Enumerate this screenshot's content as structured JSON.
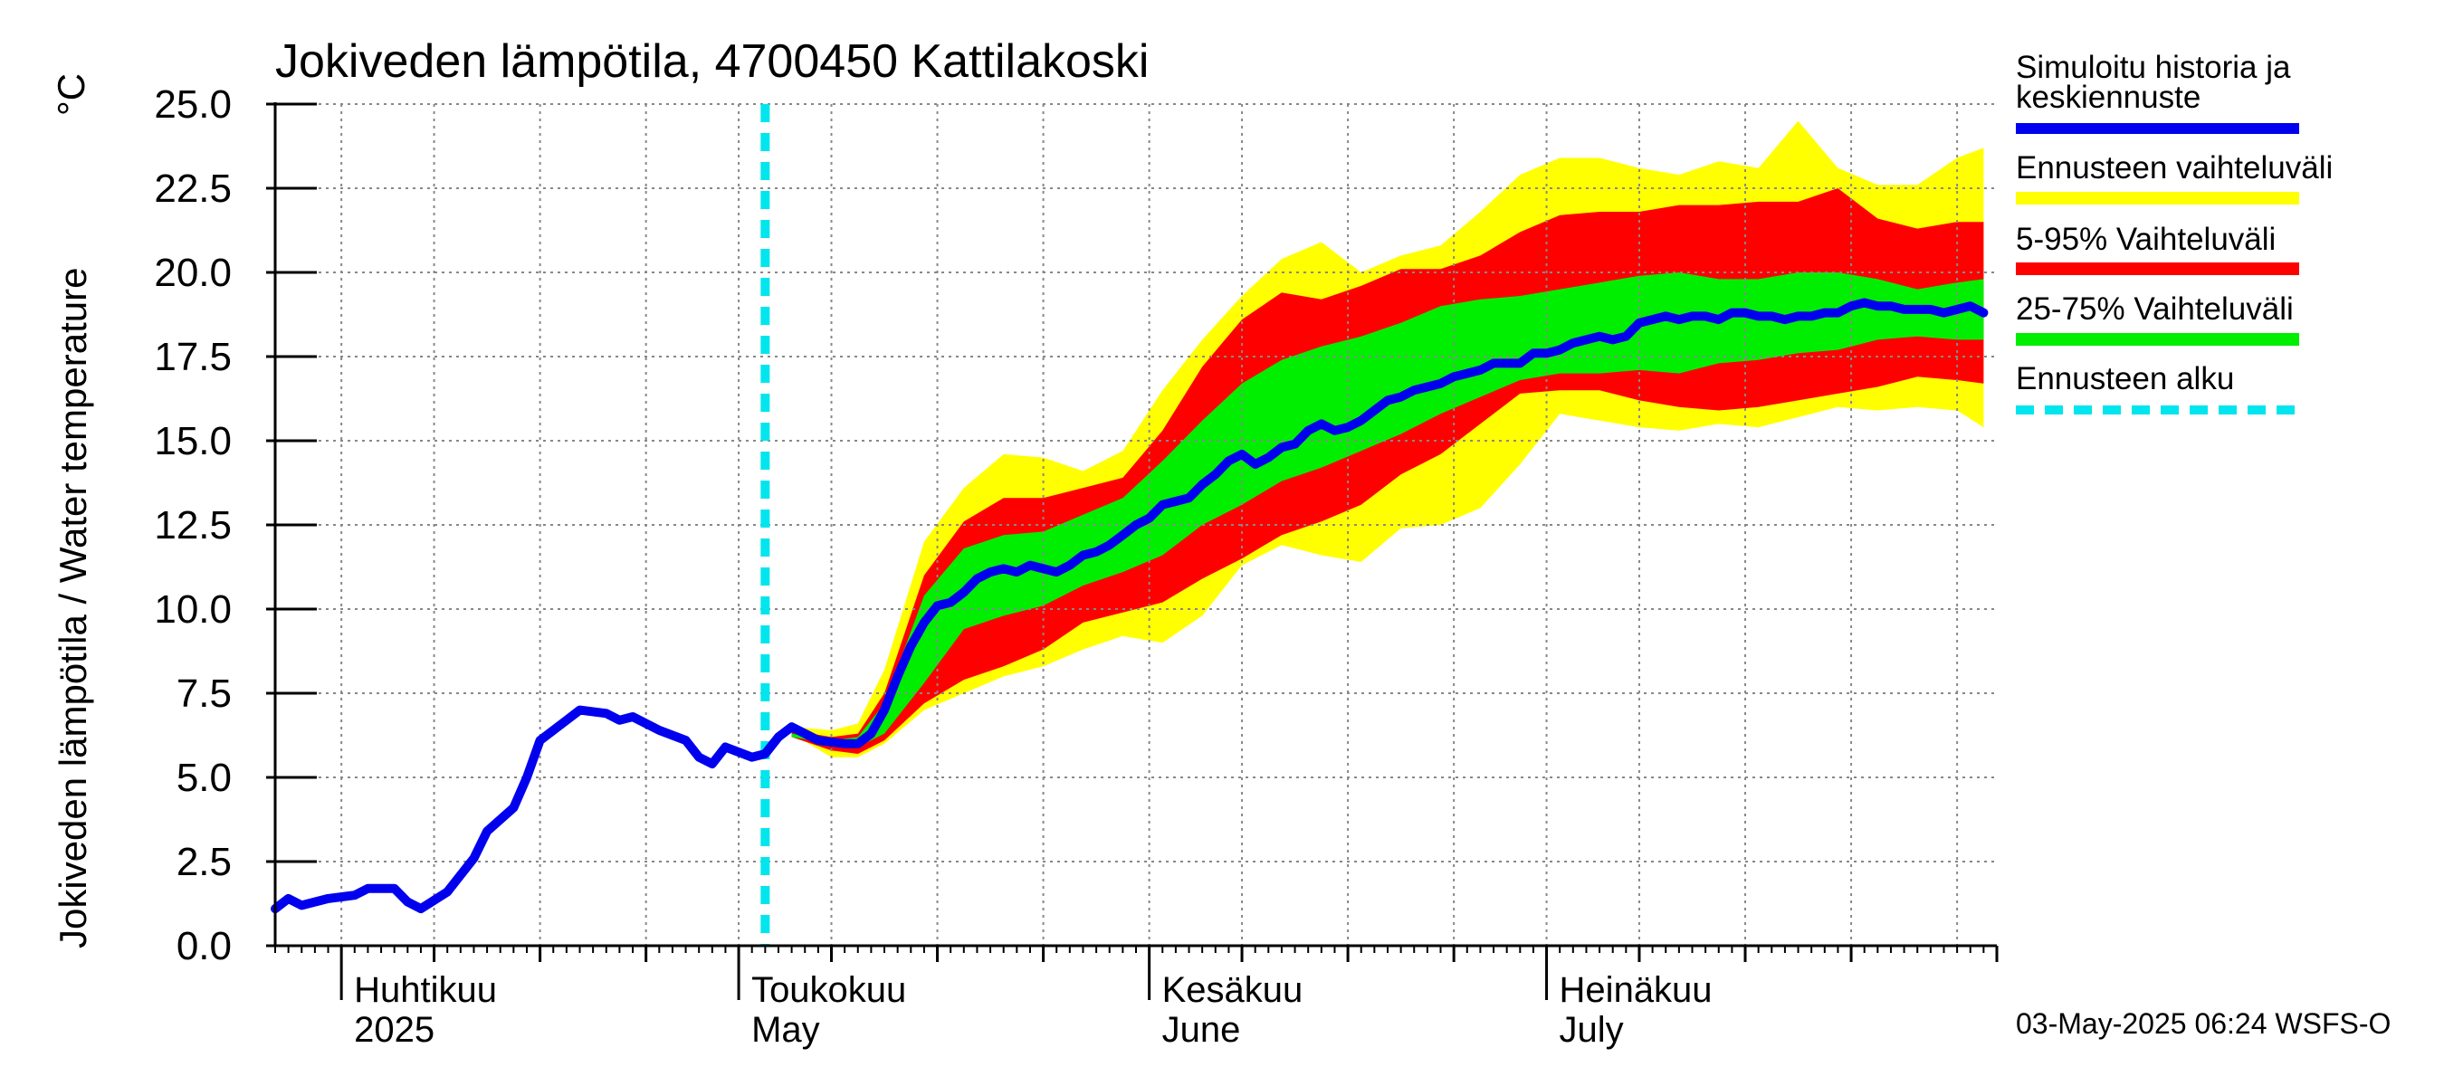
{
  "chart_data": {
    "type": "area",
    "title": "Jokiveden lämpötila, 4700450 Kattilakoski",
    "ylabel": "Jokiveden lämpötila / Water temperature",
    "yunit": "°C",
    "ylim": [
      0,
      25
    ],
    "yticks": [
      "0.0",
      "2.5",
      "5.0",
      "7.5",
      "10.0",
      "12.5",
      "15.0",
      "17.5",
      "20.0",
      "22.5",
      "25.0"
    ],
    "x_range": [
      "2025-03-27",
      "2025-08-04"
    ],
    "x_major": [
      {
        "date": "2025-04-01",
        "fi": "Huhtikuu",
        "en": "2025"
      },
      {
        "date": "2025-05-01",
        "fi": "Toukokuu",
        "en": "May"
      },
      {
        "date": "2025-06-01",
        "fi": "Kesäkuu",
        "en": "June"
      },
      {
        "date": "2025-07-01",
        "fi": "Heinäkuu",
        "en": "July"
      }
    ],
    "forecast_start": "2025-05-03",
    "grid": true,
    "legend_position": "right",
    "legend": [
      {
        "label": "Simuloitu historia ja keskiennuste",
        "line1": "Simuloitu historia ja",
        "line2": "keskiennuste",
        "color": "#0000ee",
        "style": "solid"
      },
      {
        "label": "Ennusteen vaihteluväli",
        "color": "#ffff00",
        "style": "solid"
      },
      {
        "label": "5-95% Vaihteluväli",
        "color": "#ff0000",
        "style": "solid"
      },
      {
        "label": "25-75% Vaihteluväli",
        "color": "#00ee00",
        "style": "solid"
      },
      {
        "label": "Ennusteen alku",
        "color": "#00e5ee",
        "style": "dashed"
      }
    ],
    "series": [
      {
        "name": "Simuloitu historia ja keskiennuste",
        "points": [
          [
            "2025-03-27",
            1.1
          ],
          [
            "2025-03-28",
            1.4
          ],
          [
            "2025-03-29",
            1.2
          ],
          [
            "2025-03-31",
            1.4
          ],
          [
            "2025-04-02",
            1.5
          ],
          [
            "2025-04-03",
            1.7
          ],
          [
            "2025-04-05",
            1.7
          ],
          [
            "2025-04-06",
            1.3
          ],
          [
            "2025-04-07",
            1.1
          ],
          [
            "2025-04-09",
            1.6
          ],
          [
            "2025-04-11",
            2.6
          ],
          [
            "2025-04-12",
            3.4
          ],
          [
            "2025-04-14",
            4.1
          ],
          [
            "2025-04-15",
            5.0
          ],
          [
            "2025-04-16",
            6.1
          ],
          [
            "2025-04-18",
            6.7
          ],
          [
            "2025-04-19",
            7.0
          ],
          [
            "2025-04-21",
            6.9
          ],
          [
            "2025-04-22",
            6.7
          ],
          [
            "2025-04-23",
            6.8
          ],
          [
            "2025-04-24",
            6.6
          ],
          [
            "2025-04-25",
            6.4
          ],
          [
            "2025-04-27",
            6.1
          ],
          [
            "2025-04-28",
            5.6
          ],
          [
            "2025-04-29",
            5.4
          ],
          [
            "2025-04-30",
            5.9
          ],
          [
            "2025-05-02",
            5.6
          ],
          [
            "2025-05-03",
            5.7
          ],
          [
            "2025-05-04",
            6.2
          ],
          [
            "2025-05-05",
            6.5
          ],
          [
            "2025-05-06",
            6.3
          ],
          [
            "2025-05-07",
            6.1
          ],
          [
            "2025-05-09",
            6.0
          ],
          [
            "2025-05-10",
            6.0
          ],
          [
            "2025-05-11",
            6.3
          ],
          [
            "2025-05-12",
            7.0
          ],
          [
            "2025-05-13",
            8.0
          ],
          [
            "2025-05-14",
            8.9
          ],
          [
            "2025-05-15",
            9.6
          ],
          [
            "2025-05-16",
            10.1
          ],
          [
            "2025-05-17",
            10.2
          ],
          [
            "2025-05-18",
            10.5
          ],
          [
            "2025-05-19",
            10.9
          ],
          [
            "2025-05-20",
            11.1
          ],
          [
            "2025-05-21",
            11.2
          ],
          [
            "2025-05-22",
            11.1
          ],
          [
            "2025-05-23",
            11.3
          ],
          [
            "2025-05-24",
            11.2
          ],
          [
            "2025-05-25",
            11.1
          ],
          [
            "2025-05-26",
            11.3
          ],
          [
            "2025-05-27",
            11.6
          ],
          [
            "2025-05-28",
            11.7
          ],
          [
            "2025-05-29",
            11.9
          ],
          [
            "2025-05-30",
            12.2
          ],
          [
            "2025-05-31",
            12.5
          ],
          [
            "2025-06-01",
            12.7
          ],
          [
            "2025-06-02",
            13.1
          ],
          [
            "2025-06-03",
            13.2
          ],
          [
            "2025-06-04",
            13.3
          ],
          [
            "2025-06-05",
            13.7
          ],
          [
            "2025-06-06",
            14.0
          ],
          [
            "2025-06-07",
            14.4
          ],
          [
            "2025-06-08",
            14.6
          ],
          [
            "2025-06-09",
            14.3
          ],
          [
            "2025-06-10",
            14.5
          ],
          [
            "2025-06-11",
            14.8
          ],
          [
            "2025-06-12",
            14.9
          ],
          [
            "2025-06-13",
            15.3
          ],
          [
            "2025-06-14",
            15.5
          ],
          [
            "2025-06-15",
            15.3
          ],
          [
            "2025-06-16",
            15.4
          ],
          [
            "2025-06-17",
            15.6
          ],
          [
            "2025-06-18",
            15.9
          ],
          [
            "2025-06-19",
            16.2
          ],
          [
            "2025-06-20",
            16.3
          ],
          [
            "2025-06-21",
            16.5
          ],
          [
            "2025-06-22",
            16.6
          ],
          [
            "2025-06-23",
            16.7
          ],
          [
            "2025-06-24",
            16.9
          ],
          [
            "2025-06-25",
            17.0
          ],
          [
            "2025-06-26",
            17.1
          ],
          [
            "2025-06-27",
            17.3
          ],
          [
            "2025-06-28",
            17.3
          ],
          [
            "2025-06-29",
            17.3
          ],
          [
            "2025-06-30",
            17.6
          ],
          [
            "2025-07-01",
            17.6
          ],
          [
            "2025-07-02",
            17.7
          ],
          [
            "2025-07-03",
            17.9
          ],
          [
            "2025-07-04",
            18.0
          ],
          [
            "2025-07-05",
            18.1
          ],
          [
            "2025-07-06",
            18.0
          ],
          [
            "2025-07-07",
            18.1
          ],
          [
            "2025-07-08",
            18.5
          ],
          [
            "2025-07-09",
            18.6
          ],
          [
            "2025-07-10",
            18.7
          ],
          [
            "2025-07-11",
            18.6
          ],
          [
            "2025-07-12",
            18.7
          ],
          [
            "2025-07-13",
            18.7
          ],
          [
            "2025-07-14",
            18.6
          ],
          [
            "2025-07-15",
            18.8
          ],
          [
            "2025-07-16",
            18.8
          ],
          [
            "2025-07-17",
            18.7
          ],
          [
            "2025-07-18",
            18.7
          ],
          [
            "2025-07-19",
            18.6
          ],
          [
            "2025-07-20",
            18.7
          ],
          [
            "2025-07-21",
            18.7
          ],
          [
            "2025-07-22",
            18.8
          ],
          [
            "2025-07-23",
            18.8
          ],
          [
            "2025-07-24",
            19.0
          ],
          [
            "2025-07-25",
            19.1
          ],
          [
            "2025-07-26",
            19.0
          ],
          [
            "2025-07-27",
            19.0
          ],
          [
            "2025-07-28",
            18.9
          ],
          [
            "2025-07-29",
            18.9
          ],
          [
            "2025-07-30",
            18.9
          ],
          [
            "2025-07-31",
            18.8
          ],
          [
            "2025-08-01",
            18.9
          ],
          [
            "2025-08-02",
            19.0
          ],
          [
            "2025-08-03",
            18.8
          ]
        ]
      }
    ],
    "bands": [
      {
        "name": "Ennusteen vaihteluväli",
        "color": "#ffff00",
        "dates": [
          "2025-05-05",
          "2025-05-08",
          "2025-05-10",
          "2025-05-12",
          "2025-05-15",
          "2025-05-18",
          "2025-05-21",
          "2025-05-24",
          "2025-05-27",
          "2025-05-30",
          "2025-06-02",
          "2025-06-05",
          "2025-06-08",
          "2025-06-11",
          "2025-06-14",
          "2025-06-17",
          "2025-06-20",
          "2025-06-23",
          "2025-06-26",
          "2025-06-29",
          "2025-07-02",
          "2025-07-05",
          "2025-07-08",
          "2025-07-11",
          "2025-07-14",
          "2025-07-17",
          "2025-07-20",
          "2025-07-23",
          "2025-07-26",
          "2025-07-29",
          "2025-08-01",
          "2025-08-03"
        ],
        "upper": [
          6.5,
          6.4,
          6.6,
          8.2,
          12.0,
          13.6,
          14.6,
          14.5,
          14.1,
          14.7,
          16.5,
          18.0,
          19.3,
          20.4,
          20.9,
          20.0,
          20.5,
          20.8,
          21.8,
          22.9,
          23.4,
          23.4,
          23.1,
          22.9,
          23.3,
          23.1,
          24.5,
          23.1,
          22.6,
          22.6,
          23.4,
          23.7
        ],
        "lower": [
          6.3,
          5.6,
          5.6,
          6.0,
          7.0,
          7.5,
          8.0,
          8.3,
          8.8,
          9.2,
          9.0,
          9.8,
          11.3,
          11.9,
          11.6,
          11.4,
          12.4,
          12.5,
          13.0,
          14.3,
          15.8,
          15.6,
          15.4,
          15.3,
          15.5,
          15.4,
          15.7,
          16.0,
          15.9,
          16.0,
          15.9,
          15.4
        ]
      },
      {
        "name": "5-95% Vaihteluväli",
        "color": "#ff0000",
        "dates": [
          "2025-05-05",
          "2025-05-08",
          "2025-05-10",
          "2025-05-12",
          "2025-05-15",
          "2025-05-18",
          "2025-05-21",
          "2025-05-24",
          "2025-05-27",
          "2025-05-30",
          "2025-06-02",
          "2025-06-05",
          "2025-06-08",
          "2025-06-11",
          "2025-06-14",
          "2025-06-17",
          "2025-06-20",
          "2025-06-23",
          "2025-06-26",
          "2025-06-29",
          "2025-07-02",
          "2025-07-05",
          "2025-07-08",
          "2025-07-11",
          "2025-07-14",
          "2025-07-17",
          "2025-07-20",
          "2025-07-23",
          "2025-07-26",
          "2025-07-29",
          "2025-08-01",
          "2025-08-03"
        ],
        "upper": [
          6.4,
          6.2,
          6.3,
          7.5,
          11.0,
          12.6,
          13.3,
          13.3,
          13.6,
          13.9,
          15.3,
          17.2,
          18.6,
          19.4,
          19.2,
          19.6,
          20.1,
          20.1,
          20.5,
          21.2,
          21.7,
          21.8,
          21.8,
          22.0,
          22.0,
          22.1,
          22.1,
          22.5,
          21.6,
          21.3,
          21.5,
          21.5
        ],
        "lower": [
          6.2,
          5.8,
          5.7,
          6.1,
          7.2,
          7.9,
          8.3,
          8.8,
          9.6,
          9.9,
          10.2,
          10.9,
          11.5,
          12.2,
          12.6,
          13.1,
          14.0,
          14.6,
          15.5,
          16.4,
          16.5,
          16.5,
          16.2,
          16.0,
          15.9,
          16.0,
          16.2,
          16.4,
          16.6,
          16.9,
          16.8,
          16.7
        ]
      },
      {
        "name": "25-75% Vaihteluväli",
        "color": "#00ee00",
        "dates": [
          "2025-05-05",
          "2025-05-08",
          "2025-05-10",
          "2025-05-12",
          "2025-05-15",
          "2025-05-18",
          "2025-05-21",
          "2025-05-24",
          "2025-05-27",
          "2025-05-30",
          "2025-06-02",
          "2025-06-05",
          "2025-06-08",
          "2025-06-11",
          "2025-06-14",
          "2025-06-17",
          "2025-06-20",
          "2025-06-23",
          "2025-06-26",
          "2025-06-29",
          "2025-07-02",
          "2025-07-05",
          "2025-07-08",
          "2025-07-11",
          "2025-07-14",
          "2025-07-17",
          "2025-07-20",
          "2025-07-23",
          "2025-07-26",
          "2025-07-29",
          "2025-08-01",
          "2025-08-03"
        ],
        "upper": [
          6.3,
          6.1,
          6.2,
          7.2,
          10.4,
          11.8,
          12.2,
          12.3,
          12.8,
          13.3,
          14.4,
          15.6,
          16.7,
          17.4,
          17.8,
          18.1,
          18.5,
          19.0,
          19.2,
          19.3,
          19.5,
          19.7,
          19.9,
          20.0,
          19.8,
          19.8,
          20.0,
          20.0,
          19.8,
          19.5,
          19.7,
          19.8
        ],
        "lower": [
          6.2,
          6.0,
          5.9,
          6.3,
          7.8,
          9.4,
          9.8,
          10.1,
          10.7,
          11.1,
          11.6,
          12.5,
          13.1,
          13.8,
          14.2,
          14.7,
          15.2,
          15.8,
          16.3,
          16.8,
          17.0,
          17.0,
          17.1,
          17.0,
          17.3,
          17.4,
          17.6,
          17.7,
          18.0,
          18.1,
          18.0,
          18.0
        ]
      }
    ]
  },
  "footer": {
    "timestamp": "03-May-2025 06:24 WSFS-O"
  }
}
